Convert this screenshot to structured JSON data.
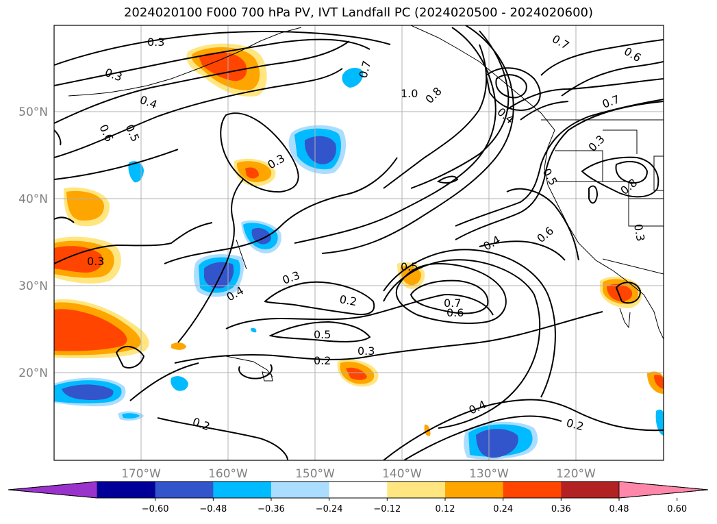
{
  "title": "2024020100 F000 700 hPa PV, IVT Landfall PC (2024020500 - 2024020600)",
  "lat_labels": [
    "50°N",
    "40°N",
    "30°N",
    "20°N"
  ],
  "lon_labels": [
    "170°W",
    "160°W",
    "150°W",
    "140°W",
    "130°W",
    "120°W"
  ],
  "contour_labels": [
    "0.3",
    "0.3",
    "0.4",
    "0.6",
    "0.5",
    "0.3",
    "0.3",
    "0.2",
    "0.5",
    "0.2",
    "0.3",
    "0.3",
    "0.4",
    "0.5",
    "0.7",
    "0.6",
    "0.4",
    "0.4",
    "0.2",
    "0.7",
    "1.0",
    "0.8",
    "0.7",
    "0.6",
    "0.7",
    "0.4",
    "0.3",
    "0.5",
    "0.6",
    "0.8",
    "0.3",
    "0.2"
  ],
  "colorbar": {
    "ticks": [
      "−0.60",
      "−0.48",
      "−0.36",
      "−0.24",
      "−0.12",
      "0.12",
      "0.24",
      "0.36",
      "0.48",
      "0.60"
    ],
    "colors": [
      "#9933cc",
      "#000099",
      "#3355cc",
      "#00bbff",
      "#aaddff",
      "#ffffff",
      "#ffe680",
      "#ffa500",
      "#ff4500",
      "#b22222",
      "#ff88aa"
    ]
  }
}
